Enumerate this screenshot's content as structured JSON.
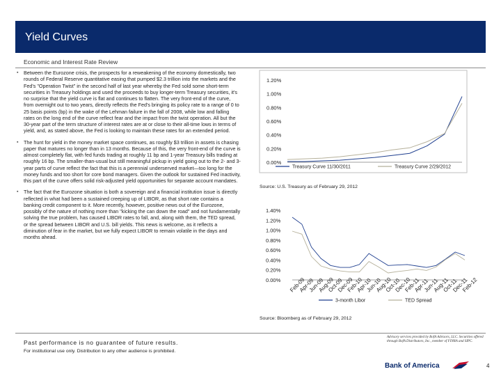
{
  "header": {
    "title": "Yield Curves"
  },
  "subheader": "Economic and Interest Rate Review",
  "bullets": [
    "Between the Eurozone crisis, the prospects for a reweakening of the economy domestically, two rounds of Federal Reserve quantitative easing that pumped $2.3 trillion into the markets and the Fed's \"Operation Twist\" in the second half of last year whereby the Fed sold some short-term securities in Treasury holdings and used the proceeds to buy longer-term Treasury securities, it's no surprise that the yield curve is flat and continues to flatten. The very front-end of the curve, from overnight out to two years, directly reflects the Fed's bringing its policy rate to a range of 0 to 25 basis points (bp) in the wake of the Lehman failure in the fall of 2008, while low and falling rates on the long end of the curve reflect fear and the impact from the twist operation. All but the 30-year part of the term structure of interest rates are at or close to their all-time lows in terms of yield, and, as stated above, the Fed is looking to maintain these rates for an extended period.",
    "The hunt for yield in the money market space continues, as roughly $3 trillion in assets is chasing paper that matures no longer than in 13 months. Because of this, the very front-end of the curve is almost completely flat, with fed funds trading at roughly 11 bp and 1-year Treasury bills trading at roughly 16 bp. The smaller-than-usual but still meaningful pickup in yield going out to the 2- and 3-year parts of curve reflect the fact that this is a perennial underserved market—too long for the money funds and too short for core bond managers. Given the outlook for sustained Fed inactivity, this part of the curve offers solid risk-adjusted yield opportunities for separate account mandates.",
    "The fact that the Eurozone situation is both a sovereign and a financial institution issue is directly reflected in what had been a sustained creeping up of LIBOR, as that short rate contains a banking credit component to it. More recently, however, positive news out of the Eurozone, possibly of the nature of nothing more than \"kicking the can down the road\" and not fundamentally solving the true problem, has caused LIBOR rates to fall, and, along with them, the TED spread, or the spread between LIBOR and U.S. bill yields. This news is welcome, as it reflects a diminution of fear in the market, but we fully expect LIBOR to remain volatile in the days and months ahead."
  ],
  "chart_data": [
    {
      "type": "line",
      "title": "",
      "xlabel": "",
      "ylabel": "",
      "ylim": [
        0,
        1.2
      ],
      "y_ticks": [
        "0.00%",
        "0.20%",
        "0.40%",
        "0.60%",
        "0.80%",
        "1.00%",
        "1.20%"
      ],
      "x": [
        0,
        1,
        2,
        3,
        4,
        5,
        6,
        7,
        8,
        9,
        10
      ],
      "series": [
        {
          "name": "Treasury Curve 11/30/2011",
          "color": "#1f3f8f",
          "values": [
            0.01,
            0.01,
            0.02,
            0.03,
            0.05,
            0.07,
            0.1,
            0.13,
            0.24,
            0.41,
            0.96
          ]
        },
        {
          "name": "Treasury Curve 2/29/2012",
          "color": "#b5b09a",
          "values": [
            0.04,
            0.05,
            0.06,
            0.08,
            0.11,
            0.14,
            0.18,
            0.21,
            0.3,
            0.42,
            0.86
          ]
        }
      ],
      "legend_position": "bottom",
      "grid": false,
      "source": "Source: U.S. Treasury as of February 29, 2012"
    },
    {
      "type": "line",
      "title": "",
      "xlabel": "",
      "ylabel": "",
      "ylim": [
        0,
        1.4
      ],
      "y_ticks": [
        "0.00%",
        "0.20%",
        "0.40%",
        "0.60%",
        "0.80%",
        "1.00%",
        "1.20%",
        "1.40%"
      ],
      "categories": [
        "Feb-09",
        "Apr-09",
        "Jun-09",
        "Aug-09",
        "Oct-09",
        "Dec-09",
        "Feb-10",
        "Apr-10",
        "Jun-10",
        "Aug-10",
        "Oct-10",
        "Dec-10",
        "Feb-11",
        "Apr-11",
        "Jun-11",
        "Aug-11",
        "Oct-11",
        "Dec-11",
        "Feb-12"
      ],
      "series": [
        {
          "name": "3-month Libor",
          "color": "#1f3f8f",
          "values": [
            1.26,
            1.12,
            0.66,
            0.43,
            0.29,
            0.25,
            0.25,
            0.31,
            0.53,
            0.41,
            0.29,
            0.3,
            0.31,
            0.28,
            0.25,
            0.29,
            0.42,
            0.56,
            0.49
          ]
        },
        {
          "name": "TED Spread",
          "color": "#b5b09a",
          "values": [
            0.98,
            0.92,
            0.47,
            0.28,
            0.22,
            0.18,
            0.16,
            0.16,
            0.37,
            0.26,
            0.14,
            0.17,
            0.19,
            0.22,
            0.19,
            0.26,
            0.41,
            0.53,
            0.4
          ]
        }
      ],
      "legend_position": "bottom",
      "grid": false,
      "source": "Source: Bloomberg as of February 29, 2012"
    }
  ],
  "footer": {
    "disclaimer": "Past performance is no guarantee of future results.",
    "notice": "For institutional use only. Distribution to any other audience is prohibited.",
    "advisory": "Advisory services provided by BofA Advisors, LLC. Securities offered through BofA Distributors, Inc., member of FINRA and SIPC.",
    "logo": "Bank of America",
    "page": "4"
  }
}
